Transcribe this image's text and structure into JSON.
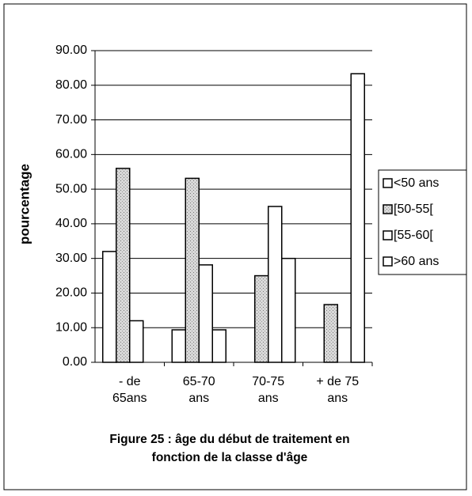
{
  "chart_data": {
    "type": "bar",
    "title": "Figure 25 : âge du début de traitement en fonction de la classe d'âge",
    "ylabel": "pourcentage",
    "categories": [
      "- de 65ans",
      "65-70 ans",
      "70-75 ans",
      "+ de 75 ans"
    ],
    "series": [
      {
        "name": "<50 ans",
        "color": "#ffffff",
        "values": [
          32,
          9.38,
          0,
          0
        ]
      },
      {
        "name": "[50-55[",
        "color": "#cfcfcf",
        "values": [
          56,
          53.13,
          25,
          16.67
        ]
      },
      {
        "name": "[55-60[",
        "color": "#ffffff",
        "values": [
          12,
          28.13,
          45,
          0
        ]
      },
      {
        "name": ">60 ans",
        "color": "#ffffff",
        "values": [
          0,
          9.38,
          30,
          83.33
        ]
      }
    ],
    "ylim": [
      0,
      90
    ],
    "yticks": [
      {
        "value": 0,
        "label": "0.00"
      },
      {
        "value": 10,
        "label": "10.00"
      },
      {
        "value": 20,
        "label": "20.00"
      },
      {
        "value": 30,
        "label": "30.00"
      },
      {
        "value": 40,
        "label": "40.00"
      },
      {
        "value": 50,
        "label": "50.00"
      },
      {
        "value": 60,
        "label": "60.00"
      },
      {
        "value": 70,
        "label": "70.00"
      },
      {
        "value": 80,
        "label": "80.00"
      },
      {
        "value": 90,
        "label": "90.00"
      }
    ],
    "grid": true,
    "legend": "right"
  }
}
